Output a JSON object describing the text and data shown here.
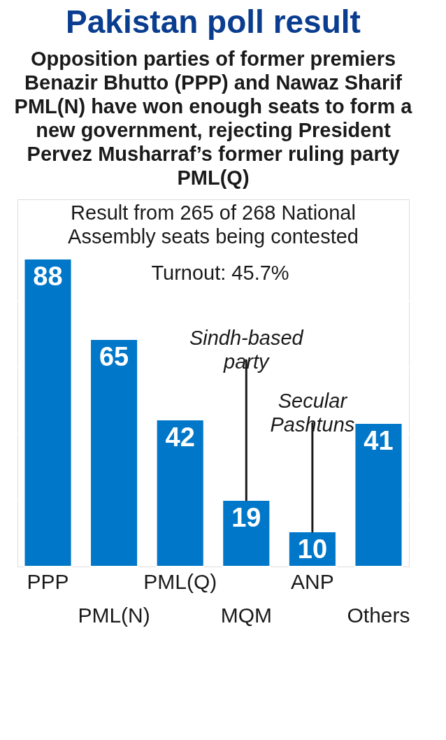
{
  "chart_data": {
    "type": "bar",
    "title": "Pakistan poll result",
    "subtitle": "Opposition parties of former premiers Benazir Bhutto (PPP) and Nawaz Sharif PML(N) have won enough seats to form a new government, rejecting President Pervez Musharraf’s former ruling party PML(Q)",
    "categories": [
      "PPP",
      "PML(N)",
      "PML(Q)",
      "MQM",
      "ANP",
      "Others"
    ],
    "values": [
      88,
      65,
      42,
      19,
      10,
      41
    ],
    "color": "#0077c8",
    "data_labels": true,
    "ylim": [
      0,
      105
    ],
    "yticks": [
      19,
      38,
      57,
      76
    ],
    "grid": "y",
    "tick_labels": false,
    "annotations": [
      "Result from 265 of 268 National Assembly seats being contested",
      "Turnout: 45.7%",
      {
        "text": "Sindh-based party",
        "x": "MQM",
        "y": 19
      },
      {
        "text": "Secular Pashtuns",
        "x": "ANP",
        "y": 10
      }
    ]
  }
}
